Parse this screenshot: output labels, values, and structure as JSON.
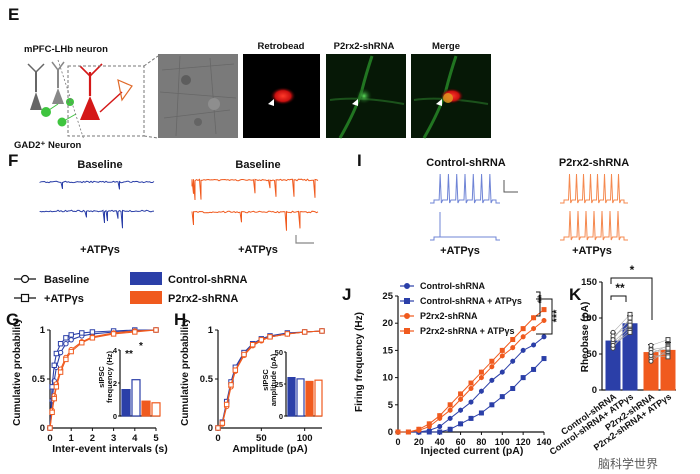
{
  "panels": {
    "E": {
      "letter": "E",
      "neuron_label": "mPFC-LHb neuron",
      "gad_label": "GAD2⁺ Neuron",
      "image_titles": [
        "Retrobead",
        "P2rx2-shRNA",
        "Merge"
      ]
    },
    "F": {
      "letter": "F",
      "titles": [
        "Baseline",
        "Baseline"
      ],
      "atp_labels": [
        "+ATPγs",
        "+ATPγs"
      ]
    },
    "I": {
      "letter": "I",
      "titles": [
        "Control-shRNA",
        "P2rx2-shRNA"
      ],
      "atp_labels": [
        "+ATPγs",
        "+ATPγs"
      ]
    },
    "legend": {
      "baseline": "Baseline",
      "atp": "+ATPγs",
      "control": "Control-shRNA",
      "p2rx2": "P2rx2-shRNA"
    },
    "G": {
      "letter": "G",
      "ylabel": "Cumulative probability",
      "xlabel": "Inter-event intervals (s)",
      "inset_ylabel_1": "sIPSC",
      "inset_ylabel_2": "frequency (Hz)",
      "sig": [
        "**",
        "*"
      ]
    },
    "H": {
      "letter": "H",
      "ylabel": "Cumulative probability",
      "xlabel": "Amplitude (pA)",
      "inset_ylabel_1": "sIPSC",
      "inset_ylabel_2": "amplitude (pA)"
    },
    "J": {
      "letter": "J",
      "ylabel": "Firing frequency (Hz)",
      "xlabel": "Injected current (pA)",
      "sig": [
        "**",
        "***"
      ]
    },
    "K": {
      "letter": "K",
      "ylabel": "Rheobase (pA)",
      "sig": [
        "**",
        "*"
      ]
    }
  },
  "watermark": "脑科学世界",
  "colors": {
    "control": "#2b3fa8",
    "p2rx2": "#f05a1e",
    "bead": "#e01818",
    "green": "#3fc43f",
    "title_red": "#c41a1a",
    "title_green": "#2aa52a"
  },
  "chart_data": [
    {
      "id": "G",
      "type": "line",
      "title": "",
      "xlabel": "Inter-event intervals (s)",
      "ylabel": "Cumulative probability",
      "xlim": [
        0,
        5
      ],
      "ylim": [
        0,
        1
      ],
      "xticks": [
        0,
        1,
        2,
        3,
        4,
        5
      ],
      "yticks": [
        0,
        0.5,
        1
      ],
      "x": [
        0,
        0.1,
        0.2,
        0.3,
        0.5,
        0.75,
        1,
        1.5,
        2,
        3,
        4,
        5
      ],
      "series": [
        {
          "name": "Control-shRNA Baseline",
          "values": [
            0,
            0.28,
            0.48,
            0.62,
            0.77,
            0.86,
            0.9,
            0.94,
            0.96,
            0.98,
            0.99,
            1.0
          ]
        },
        {
          "name": "Control-shRNA + ATPγs",
          "values": [
            0,
            0.42,
            0.64,
            0.76,
            0.86,
            0.92,
            0.95,
            0.97,
            0.98,
            0.99,
            1.0,
            1.0
          ]
        },
        {
          "name": "P2rx2-shRNA Baseline",
          "values": [
            0,
            0.18,
            0.33,
            0.45,
            0.6,
            0.72,
            0.8,
            0.88,
            0.93,
            0.97,
            0.99,
            1.0
          ]
        },
        {
          "name": "P2rx2-shRNA + ATPγs",
          "values": [
            0,
            0.16,
            0.3,
            0.42,
            0.57,
            0.7,
            0.78,
            0.87,
            0.92,
            0.96,
            0.98,
            1.0
          ]
        }
      ],
      "inset": {
        "ylabel": "sIPSC frequency (Hz)",
        "ylim": [
          0,
          4
        ],
        "yticks": [
          0,
          2,
          4
        ],
        "bars": [
          {
            "name": "Control-shRNA Baseline",
            "value": 1.6
          },
          {
            "name": "Control-shRNA + ATPγs",
            "value": 2.2
          },
          {
            "name": "P2rx2-shRNA Baseline",
            "value": 0.9
          },
          {
            "name": "P2rx2-shRNA + ATPγs",
            "value": 0.8
          }
        ]
      }
    },
    {
      "id": "H",
      "type": "line",
      "xlabel": "Amplitude (pA)",
      "ylabel": "Cumulative probability",
      "xlim": [
        0,
        120
      ],
      "ylim": [
        0,
        1
      ],
      "xticks": [
        0,
        50,
        100
      ],
      "yticks": [
        0,
        0.5,
        1
      ],
      "x": [
        0,
        5,
        10,
        15,
        20,
        30,
        40,
        50,
        60,
        80,
        100,
        120
      ],
      "series": [
        {
          "name": "Control-shRNA Baseline",
          "values": [
            0,
            0.05,
            0.25,
            0.45,
            0.6,
            0.76,
            0.85,
            0.9,
            0.93,
            0.96,
            0.98,
            0.99
          ]
        },
        {
          "name": "Control-shRNA + ATPγs",
          "values": [
            0,
            0.06,
            0.27,
            0.47,
            0.62,
            0.77,
            0.86,
            0.91,
            0.94,
            0.97,
            0.98,
            0.99
          ]
        },
        {
          "name": "P2rx2-shRNA Baseline",
          "values": [
            0,
            0.04,
            0.22,
            0.42,
            0.58,
            0.74,
            0.84,
            0.89,
            0.93,
            0.96,
            0.98,
            0.99
          ]
        },
        {
          "name": "P2rx2-shRNA + ATPγs",
          "values": [
            0,
            0.05,
            0.24,
            0.44,
            0.59,
            0.75,
            0.85,
            0.9,
            0.93,
            0.96,
            0.98,
            0.99
          ]
        }
      ],
      "inset": {
        "ylabel": "sIPSC amplitude (pA)",
        "ylim": [
          0,
          50
        ],
        "yticks": [
          0,
          25,
          50
        ],
        "bars": [
          {
            "name": "Control-shRNA Baseline",
            "value": 30
          },
          {
            "name": "Control-shRNA + ATPγs",
            "value": 29
          },
          {
            "name": "P2rx2-shRNA Baseline",
            "value": 27
          },
          {
            "name": "P2rx2-shRNA + ATPγs",
            "value": 28
          }
        ]
      }
    },
    {
      "id": "J",
      "type": "line",
      "xlabel": "Injected current (pA)",
      "ylabel": "Firing frequency (Hz)",
      "xlim": [
        0,
        140
      ],
      "ylim": [
        0,
        25
      ],
      "xticks": [
        0,
        20,
        40,
        60,
        80,
        100,
        120,
        140
      ],
      "yticks": [
        0,
        5,
        10,
        15,
        20,
        25
      ],
      "x": [
        0,
        10,
        20,
        30,
        40,
        50,
        60,
        70,
        80,
        90,
        100,
        110,
        120,
        130,
        140
      ],
      "legend": [
        "Control-shRNA",
        "Control-shRNA + ATPγs",
        "P2rx2-shRNA",
        "P2rx2-shRNA + ATPγs"
      ],
      "series": [
        {
          "name": "Control-shRNA",
          "values": [
            0,
            0,
            0,
            0.3,
            1,
            2.5,
            4,
            5.5,
            7.5,
            9.5,
            11,
            13,
            15,
            16,
            17.5
          ]
        },
        {
          "name": "Control-shRNA + ATPγs",
          "values": [
            0,
            0,
            0,
            0,
            0,
            0.5,
            1.5,
            2.5,
            3.5,
            5,
            6.5,
            8,
            10,
            11.5,
            13.5
          ]
        },
        {
          "name": "P2rx2-shRNA",
          "values": [
            0,
            0,
            0.3,
            1,
            2.5,
            4,
            6,
            8,
            10,
            12,
            14,
            15.5,
            17.5,
            19,
            20.5
          ]
        },
        {
          "name": "P2rx2-shRNA + ATPγs",
          "values": [
            0,
            0,
            0.5,
            1.5,
            3,
            5,
            7,
            9,
            11,
            13,
            15,
            17,
            19,
            21,
            22.5
          ]
        }
      ]
    },
    {
      "id": "K",
      "type": "bar",
      "ylabel": "Rheobase (pA)",
      "ylim": [
        0,
        150
      ],
      "yticks": [
        0,
        50,
        100,
        150
      ],
      "categories": [
        "Control-shRNA",
        "Control-shRNA+ ATPγs",
        "P2rx2-shRNA",
        "P2rx2-shRNA+ ATPγs"
      ],
      "values": [
        68,
        92,
        52,
        55
      ]
    }
  ]
}
